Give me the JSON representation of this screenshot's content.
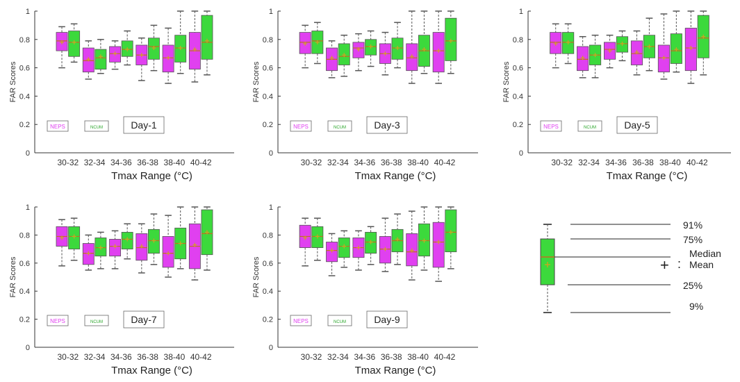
{
  "figure": {
    "colors": {
      "neps": "#e040f0",
      "ncum": "#3cd93c",
      "whisker": "#555555",
      "mean": "#d4a020",
      "median": "#c07020",
      "axis": "#333333"
    }
  },
  "legend_key": {
    "labels": [
      "91%",
      "75%",
      "Median",
      "Mean",
      "25%",
      "9%"
    ],
    "mean_symbol": "+",
    "colon": ":"
  },
  "chart_data": [
    {
      "type": "box",
      "panel_label": "Day-1",
      "xlabel": "Tmax Range (°C)",
      "ylabel": "FAR Scores",
      "ylim": [
        0,
        1
      ],
      "yticks": [
        0,
        0.2,
        0.4,
        0.6,
        0.8,
        1
      ],
      "categories": [
        "30-32",
        "32-34",
        "34-36",
        "36-38",
        "38-40",
        "40-42"
      ],
      "legend": [
        "NEPS",
        "NCUM"
      ],
      "series": [
        {
          "name": "NEPS",
          "boxes": [
            {
              "p9": 0.6,
              "q1": 0.72,
              "median": 0.79,
              "mean": 0.78,
              "q3": 0.85,
              "p91": 0.89
            },
            {
              "p9": 0.52,
              "q1": 0.57,
              "median": 0.65,
              "mean": 0.66,
              "q3": 0.74,
              "p91": 0.79
            },
            {
              "p9": 0.59,
              "q1": 0.64,
              "median": 0.7,
              "mean": 0.7,
              "q3": 0.75,
              "p91": 0.79
            },
            {
              "p9": 0.51,
              "q1": 0.62,
              "median": 0.69,
              "mean": 0.69,
              "q3": 0.76,
              "p91": 0.81
            },
            {
              "p9": 0.49,
              "q1": 0.57,
              "median": 0.67,
              "mean": 0.67,
              "q3": 0.76,
              "p91": 0.88
            },
            {
              "p9": 0.5,
              "q1": 0.59,
              "median": 0.72,
              "mean": 0.73,
              "q3": 0.85,
              "p91": 1.0
            }
          ]
        },
        {
          "name": "NCUM",
          "boxes": [
            {
              "p9": 0.64,
              "q1": 0.68,
              "median": 0.78,
              "mean": 0.78,
              "q3": 0.86,
              "p91": 0.91
            },
            {
              "p9": 0.56,
              "q1": 0.59,
              "median": 0.67,
              "mean": 0.68,
              "q3": 0.73,
              "p91": 0.8
            },
            {
              "p9": 0.62,
              "q1": 0.68,
              "median": 0.73,
              "mean": 0.73,
              "q3": 0.79,
              "p91": 0.86
            },
            {
              "p9": 0.58,
              "q1": 0.66,
              "median": 0.75,
              "mean": 0.74,
              "q3": 0.81,
              "p91": 0.9
            },
            {
              "p9": 0.56,
              "q1": 0.64,
              "median": 0.74,
              "mean": 0.74,
              "q3": 0.83,
              "p91": 1.0
            },
            {
              "p9": 0.55,
              "q1": 0.66,
              "median": 0.78,
              "mean": 0.79,
              "q3": 0.97,
              "p91": 1.0
            }
          ]
        }
      ]
    },
    {
      "type": "box",
      "panel_label": "Day-3",
      "xlabel": "Tmax Range (°C)",
      "ylabel": "FAR Scores",
      "ylim": [
        0,
        1
      ],
      "yticks": [
        0,
        0.2,
        0.4,
        0.6,
        0.8,
        1
      ],
      "categories": [
        "30-32",
        "32-34",
        "34-36",
        "36-38",
        "38-40",
        "40-42"
      ],
      "legend": [
        "NEPS",
        "NCUM"
      ],
      "series": [
        {
          "name": "NEPS",
          "boxes": [
            {
              "p9": 0.6,
              "q1": 0.7,
              "median": 0.78,
              "mean": 0.77,
              "q3": 0.85,
              "p91": 0.9
            },
            {
              "p9": 0.53,
              "q1": 0.58,
              "median": 0.66,
              "mean": 0.67,
              "q3": 0.74,
              "p91": 0.79
            },
            {
              "p9": 0.58,
              "q1": 0.67,
              "median": 0.74,
              "mean": 0.73,
              "q3": 0.78,
              "p91": 0.84
            },
            {
              "p9": 0.55,
              "q1": 0.63,
              "median": 0.7,
              "mean": 0.7,
              "q3": 0.77,
              "p91": 0.85
            },
            {
              "p9": 0.49,
              "q1": 0.58,
              "median": 0.67,
              "mean": 0.68,
              "q3": 0.77,
              "p91": 1.0
            },
            {
              "p9": 0.49,
              "q1": 0.57,
              "median": 0.72,
              "mean": 0.72,
              "q3": 0.85,
              "p91": 1.0
            }
          ]
        },
        {
          "name": "NCUM",
          "boxes": [
            {
              "p9": 0.63,
              "q1": 0.7,
              "median": 0.79,
              "mean": 0.78,
              "q3": 0.86,
              "p91": 0.92
            },
            {
              "p9": 0.54,
              "q1": 0.62,
              "median": 0.68,
              "mean": 0.69,
              "q3": 0.77,
              "p91": 0.83
            },
            {
              "p9": 0.61,
              "q1": 0.69,
              "median": 0.75,
              "mean": 0.75,
              "q3": 0.8,
              "p91": 0.86
            },
            {
              "p9": 0.6,
              "q1": 0.66,
              "median": 0.74,
              "mean": 0.74,
              "q3": 0.81,
              "p91": 0.92
            },
            {
              "p9": 0.56,
              "q1": 0.61,
              "median": 0.72,
              "mean": 0.73,
              "q3": 0.83,
              "p91": 1.0
            },
            {
              "p9": 0.56,
              "q1": 0.65,
              "median": 0.79,
              "mean": 0.79,
              "q3": 0.95,
              "p91": 1.0
            }
          ]
        }
      ]
    },
    {
      "type": "box",
      "panel_label": "Day-5",
      "xlabel": "Tmax Range (°C)",
      "ylabel": "FAR Scores",
      "ylim": [
        0,
        1
      ],
      "yticks": [
        0,
        0.2,
        0.4,
        0.6,
        0.8,
        1
      ],
      "categories": [
        "30-32",
        "32-34",
        "34-36",
        "36-38",
        "38-40",
        "40-42"
      ],
      "legend": [
        "NEPS",
        "NCUM"
      ],
      "series": [
        {
          "name": "NEPS",
          "boxes": [
            {
              "p9": 0.6,
              "q1": 0.7,
              "median": 0.78,
              "mean": 0.77,
              "q3": 0.85,
              "p91": 0.91
            },
            {
              "p9": 0.53,
              "q1": 0.58,
              "median": 0.66,
              "mean": 0.67,
              "q3": 0.75,
              "p91": 0.82
            },
            {
              "p9": 0.6,
              "q1": 0.66,
              "median": 0.73,
              "mean": 0.72,
              "q3": 0.78,
              "p91": 0.83
            },
            {
              "p9": 0.55,
              "q1": 0.62,
              "median": 0.7,
              "mean": 0.71,
              "q3": 0.79,
              "p91": 0.86
            },
            {
              "p9": 0.52,
              "q1": 0.57,
              "median": 0.67,
              "mean": 0.67,
              "q3": 0.76,
              "p91": 0.98
            },
            {
              "p9": 0.49,
              "q1": 0.58,
              "median": 0.74,
              "mean": 0.74,
              "q3": 0.88,
              "p91": 1.0
            }
          ]
        },
        {
          "name": "NCUM",
          "boxes": [
            {
              "p9": 0.63,
              "q1": 0.7,
              "median": 0.78,
              "mean": 0.78,
              "q3": 0.85,
              "p91": 0.91
            },
            {
              "p9": 0.53,
              "q1": 0.62,
              "median": 0.69,
              "mean": 0.69,
              "q3": 0.76,
              "p91": 0.83
            },
            {
              "p9": 0.65,
              "q1": 0.71,
              "median": 0.77,
              "mean": 0.77,
              "q3": 0.82,
              "p91": 0.86
            },
            {
              "p9": 0.58,
              "q1": 0.67,
              "median": 0.75,
              "mean": 0.75,
              "q3": 0.83,
              "p91": 0.95
            },
            {
              "p9": 0.57,
              "q1": 0.63,
              "median": 0.72,
              "mean": 0.73,
              "q3": 0.84,
              "p91": 1.0
            },
            {
              "p9": 0.55,
              "q1": 0.67,
              "median": 0.81,
              "mean": 0.82,
              "q3": 0.97,
              "p91": 1.0
            }
          ]
        }
      ]
    },
    {
      "type": "box",
      "panel_label": "Day-7",
      "xlabel": "Tmax Range (°C)",
      "ylabel": "FAR Scores",
      "ylim": [
        0,
        1
      ],
      "yticks": [
        0,
        0.2,
        0.4,
        0.6,
        0.8,
        1
      ],
      "categories": [
        "30-32",
        "32-34",
        "34-36",
        "36-38",
        "38-40",
        "40-42"
      ],
      "legend": [
        "NEPS",
        "NCUM"
      ],
      "series": [
        {
          "name": "NEPS",
          "boxes": [
            {
              "p9": 0.58,
              "q1": 0.72,
              "median": 0.79,
              "mean": 0.78,
              "q3": 0.86,
              "p91": 0.91
            },
            {
              "p9": 0.55,
              "q1": 0.59,
              "median": 0.67,
              "mean": 0.67,
              "q3": 0.74,
              "p91": 0.8
            },
            {
              "p9": 0.56,
              "q1": 0.65,
              "median": 0.72,
              "mean": 0.72,
              "q3": 0.77,
              "p91": 0.83
            },
            {
              "p9": 0.53,
              "q1": 0.62,
              "median": 0.71,
              "mean": 0.72,
              "q3": 0.81,
              "p91": 0.88
            },
            {
              "p9": 0.5,
              "q1": 0.57,
              "median": 0.67,
              "mean": 0.67,
              "q3": 0.79,
              "p91": 0.94
            },
            {
              "p9": 0.48,
              "q1": 0.56,
              "median": 0.72,
              "mean": 0.73,
              "q3": 0.88,
              "p91": 1.0
            }
          ]
        },
        {
          "name": "NCUM",
          "boxes": [
            {
              "p9": 0.62,
              "q1": 0.7,
              "median": 0.79,
              "mean": 0.79,
              "q3": 0.86,
              "p91": 0.92
            },
            {
              "p9": 0.56,
              "q1": 0.65,
              "median": 0.71,
              "mean": 0.71,
              "q3": 0.78,
              "p91": 0.82
            },
            {
              "p9": 0.63,
              "q1": 0.7,
              "median": 0.77,
              "mean": 0.77,
              "q3": 0.82,
              "p91": 0.88
            },
            {
              "p9": 0.59,
              "q1": 0.67,
              "median": 0.76,
              "mean": 0.76,
              "q3": 0.84,
              "p91": 0.95
            },
            {
              "p9": 0.56,
              "q1": 0.63,
              "median": 0.74,
              "mean": 0.74,
              "q3": 0.85,
              "p91": 1.0
            },
            {
              "p9": 0.55,
              "q1": 0.66,
              "median": 0.81,
              "mean": 0.82,
              "q3": 0.98,
              "p91": 1.0
            }
          ]
        }
      ]
    },
    {
      "type": "box",
      "panel_label": "Day-9",
      "xlabel": "Tmax Range (°C)",
      "ylabel": "FAR Scores",
      "ylim": [
        0,
        1
      ],
      "yticks": [
        0,
        0.2,
        0.4,
        0.6,
        0.8,
        1
      ],
      "categories": [
        "30-32",
        "32-34",
        "34-36",
        "36-38",
        "38-40",
        "40-42"
      ],
      "legend": [
        "NEPS",
        "NCUM"
      ],
      "series": [
        {
          "name": "NEPS",
          "boxes": [
            {
              "p9": 0.58,
              "q1": 0.71,
              "median": 0.79,
              "mean": 0.78,
              "q3": 0.87,
              "p91": 0.92
            },
            {
              "p9": 0.51,
              "q1": 0.61,
              "median": 0.69,
              "mean": 0.69,
              "q3": 0.75,
              "p91": 0.81
            },
            {
              "p9": 0.55,
              "q1": 0.64,
              "median": 0.71,
              "mean": 0.71,
              "q3": 0.78,
              "p91": 0.83
            },
            {
              "p9": 0.54,
              "q1": 0.6,
              "median": 0.7,
              "mean": 0.7,
              "q3": 0.79,
              "p91": 0.92
            },
            {
              "p9": 0.48,
              "q1": 0.58,
              "median": 0.68,
              "mean": 0.69,
              "q3": 0.81,
              "p91": 0.97
            },
            {
              "p9": 0.47,
              "q1": 0.57,
              "median": 0.75,
              "mean": 0.75,
              "q3": 0.89,
              "p91": 1.0
            }
          ]
        },
        {
          "name": "NCUM",
          "boxes": [
            {
              "p9": 0.62,
              "q1": 0.71,
              "median": 0.79,
              "mean": 0.79,
              "q3": 0.86,
              "p91": 0.92
            },
            {
              "p9": 0.57,
              "q1": 0.64,
              "median": 0.72,
              "mean": 0.72,
              "q3": 0.78,
              "p91": 0.83
            },
            {
              "p9": 0.59,
              "q1": 0.67,
              "median": 0.75,
              "mean": 0.75,
              "q3": 0.82,
              "p91": 0.86
            },
            {
              "p9": 0.59,
              "q1": 0.68,
              "median": 0.76,
              "mean": 0.77,
              "q3": 0.84,
              "p91": 0.95
            },
            {
              "p9": 0.55,
              "q1": 0.65,
              "median": 0.76,
              "mean": 0.76,
              "q3": 0.88,
              "p91": 1.0
            },
            {
              "p9": 0.56,
              "q1": 0.68,
              "median": 0.82,
              "mean": 0.82,
              "q3": 0.98,
              "p91": 1.0
            }
          ]
        }
      ]
    }
  ]
}
